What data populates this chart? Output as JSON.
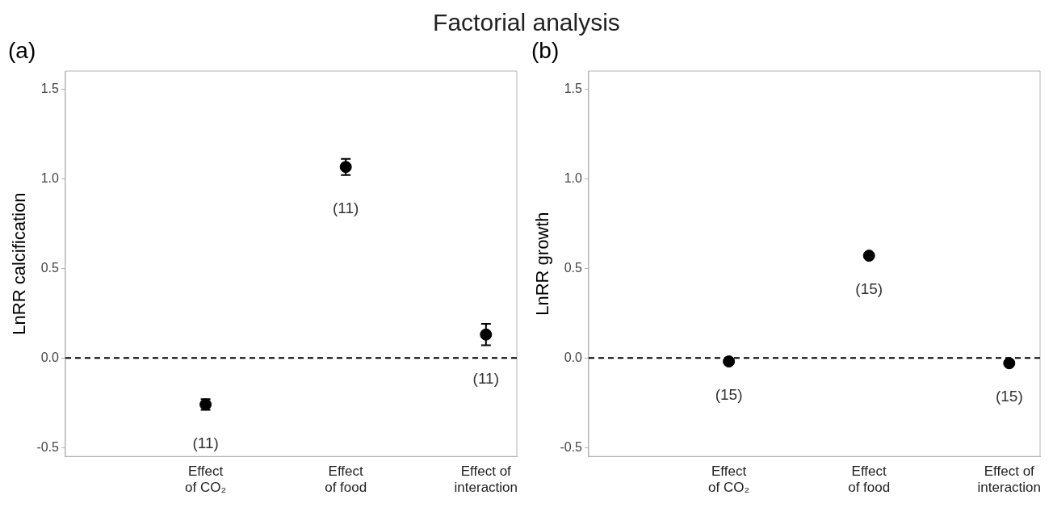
{
  "chart_data": [
    {
      "type": "scatter",
      "title": "Factorial analysis",
      "ylabel": "LnRR calcification",
      "categories": [
        "Effect\nof CO₂",
        "Effect\nof food",
        "Effect of\ninteraction"
      ],
      "series": [
        {
          "color": "#000000",
          "values": [
            -0.26,
            1.065,
            0.13
          ],
          "errors": [
            0.03,
            [
              1.02,
              1.11
            ],
            [
              0.07,
              0.19
            ]
          ]
        }
      ],
      "ylim": [
        -0.55,
        1.6
      ],
      "yticks": [
        {
          "value": -0.5,
          "label": "-0.5"
        },
        {
          "value": 0,
          "label": "0.0"
        },
        {
          "value": 0.5,
          "label": "0.5"
        },
        {
          "value": 1,
          "label": "1.0"
        },
        {
          "value": 1.5,
          "label": "1.5"
        }
      ],
      "ref_lines": [
        {
          "axis": "y",
          "value": 0,
          "line_style": "dashed",
          "color": "#000000"
        }
      ],
      "grid": false,
      "legend": false,
      "annotations": [
        "(a)",
        "(11)",
        "(11)",
        "(11)"
      ]
    },
    {
      "type": "scatter",
      "ylabel": "LnRR growth",
      "categories": [
        "Effect\nof CO₂",
        "Effect\nof food",
        "Effect of\ninteraction"
      ],
      "series": [
        {
          "color": "#000000",
          "values": [
            -0.02,
            0.57,
            -0.03
          ]
        }
      ],
      "ylim": [
        -0.55,
        1.6
      ],
      "yticks": [
        {
          "value": -0.5,
          "label": "-0.5"
        },
        {
          "value": 0,
          "label": "0.0"
        },
        {
          "value": 0.5,
          "label": "0.5"
        },
        {
          "value": 1,
          "label": "1.0"
        },
        {
          "value": 1.5,
          "label": "1.5"
        }
      ],
      "ref_lines": [
        {
          "axis": "y",
          "value": 0,
          "line_style": "dashed",
          "color": "#000000"
        }
      ],
      "marker": "circle",
      "grid": false,
      "legend": false,
      "annotations": [
        "(b)",
        "(15)",
        "(15)",
        "(15)"
      ]
    }
  ]
}
